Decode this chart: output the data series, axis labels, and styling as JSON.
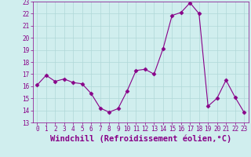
{
  "x": [
    0,
    1,
    2,
    3,
    4,
    5,
    6,
    7,
    8,
    9,
    10,
    11,
    12,
    13,
    14,
    15,
    16,
    17,
    18,
    19,
    20,
    21,
    22,
    23
  ],
  "y": [
    16.1,
    16.9,
    16.4,
    16.6,
    16.3,
    16.2,
    15.4,
    14.2,
    13.85,
    14.15,
    15.6,
    17.3,
    17.4,
    17.0,
    19.1,
    21.85,
    22.1,
    22.9,
    22.0,
    14.35,
    15.0,
    16.5,
    15.1,
    13.85
  ],
  "line_color": "#880088",
  "marker": "D",
  "marker_size": 2.5,
  "bg_color": "#d0eeee",
  "grid_color": "#b0d8d8",
  "xlabel": "Windchill (Refroidissement éolien,°C)",
  "xlabel_color": "#880088",
  "tick_color": "#880088",
  "ylim": [
    13,
    23
  ],
  "yticks": [
    13,
    14,
    15,
    16,
    17,
    18,
    19,
    20,
    21,
    22,
    23
  ],
  "xticks": [
    0,
    1,
    2,
    3,
    4,
    5,
    6,
    7,
    8,
    9,
    10,
    11,
    12,
    13,
    14,
    15,
    16,
    17,
    18,
    19,
    20,
    21,
    22,
    23
  ],
  "tick_fontsize": 5.5,
  "xlabel_fontsize": 7.5,
  "linewidth": 0.8
}
